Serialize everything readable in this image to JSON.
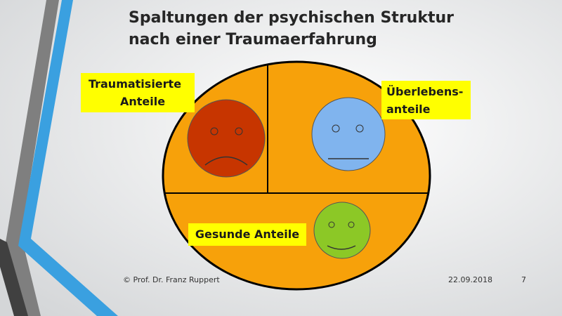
{
  "title": {
    "line1": "Spaltungen der psychischen Struktur",
    "line2": "nach einer Traumaerfahrung"
  },
  "labels": {
    "traumatized": [
      "Traumatisierte",
      "Anteile"
    ],
    "survival": [
      "Überlebens-",
      "anteile"
    ],
    "healthy": "Gesunde Anteile"
  },
  "footer": {
    "author": "© Prof. Dr. Franz Ruppert",
    "date": "22.09.2018",
    "page": "7"
  }
}
